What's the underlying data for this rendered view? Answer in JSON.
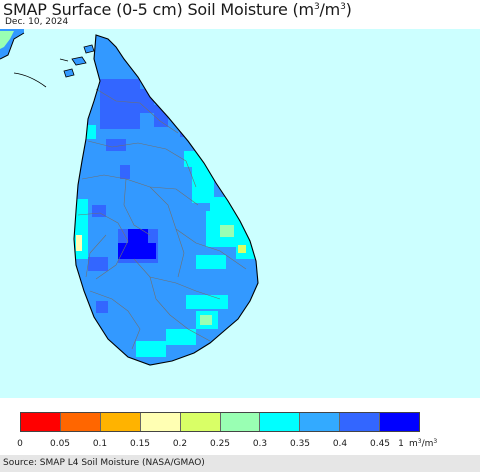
{
  "title": {
    "main": "SMAP Surface (0-5 cm) Soil Moisture (m",
    "sup1": "3",
    "slash": "/m",
    "sup2": "3",
    "close": ")"
  },
  "date": "Dec. 10, 2024",
  "colors": {
    "sea": "#ccffff",
    "land_base": "#3399ff",
    "border_line": "#707070",
    "coast_line": "#000000"
  },
  "legend": {
    "colors": [
      "#ff0000",
      "#ff6600",
      "#ffb300",
      "#ffffb3",
      "#d9ff66",
      "#99ffb3",
      "#00ffff",
      "#33aaff",
      "#3366ff",
      "#0000ff"
    ],
    "tick_labels": [
      "0",
      "0.05",
      "0.1",
      "0.15",
      "0.2",
      "0.25",
      "0.3",
      "0.35",
      "0.4",
      "0.45",
      "1"
    ],
    "unit": {
      "prefix": "m",
      "sup1": "3",
      "mid": "/m",
      "sup2": "3"
    }
  },
  "source": "Source: SMAP L4 Soil Moisture (NASA/GMAO)"
}
